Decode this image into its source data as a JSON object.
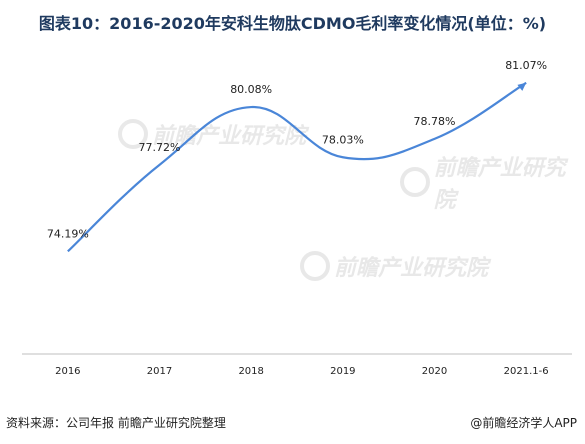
{
  "title": "图表10：2016-2020年安科生物肽CDMO毛利率变化情况(单位：%)",
  "footer": {
    "source": "资料来源：公司年报 前瞻产业研究院整理",
    "brand": "@前瞻经济学人APP"
  },
  "watermark": {
    "text": "前瞻产业研究院"
  },
  "chart_data": {
    "type": "line",
    "title": "图表10：2016-2020年安科生物肽CDMO毛利率变化情况(单位：%)",
    "categories": [
      "2016",
      "2017",
      "2018",
      "2019",
      "2020",
      "2021.1-6"
    ],
    "series": [
      {
        "values": [
          74.19,
          77.72,
          80.08,
          78.03,
          78.78,
          81.07
        ],
        "labels": [
          "74.19%",
          "77.72%",
          "80.08%",
          "78.03%",
          "78.78%",
          "81.07%"
        ]
      }
    ],
    "xlabel": "",
    "ylabel": "",
    "ylim": [
      70,
      82
    ],
    "grid": false,
    "legend": "none",
    "line_color": "#4a86d8",
    "axis_color": "#bfbfbf"
  }
}
